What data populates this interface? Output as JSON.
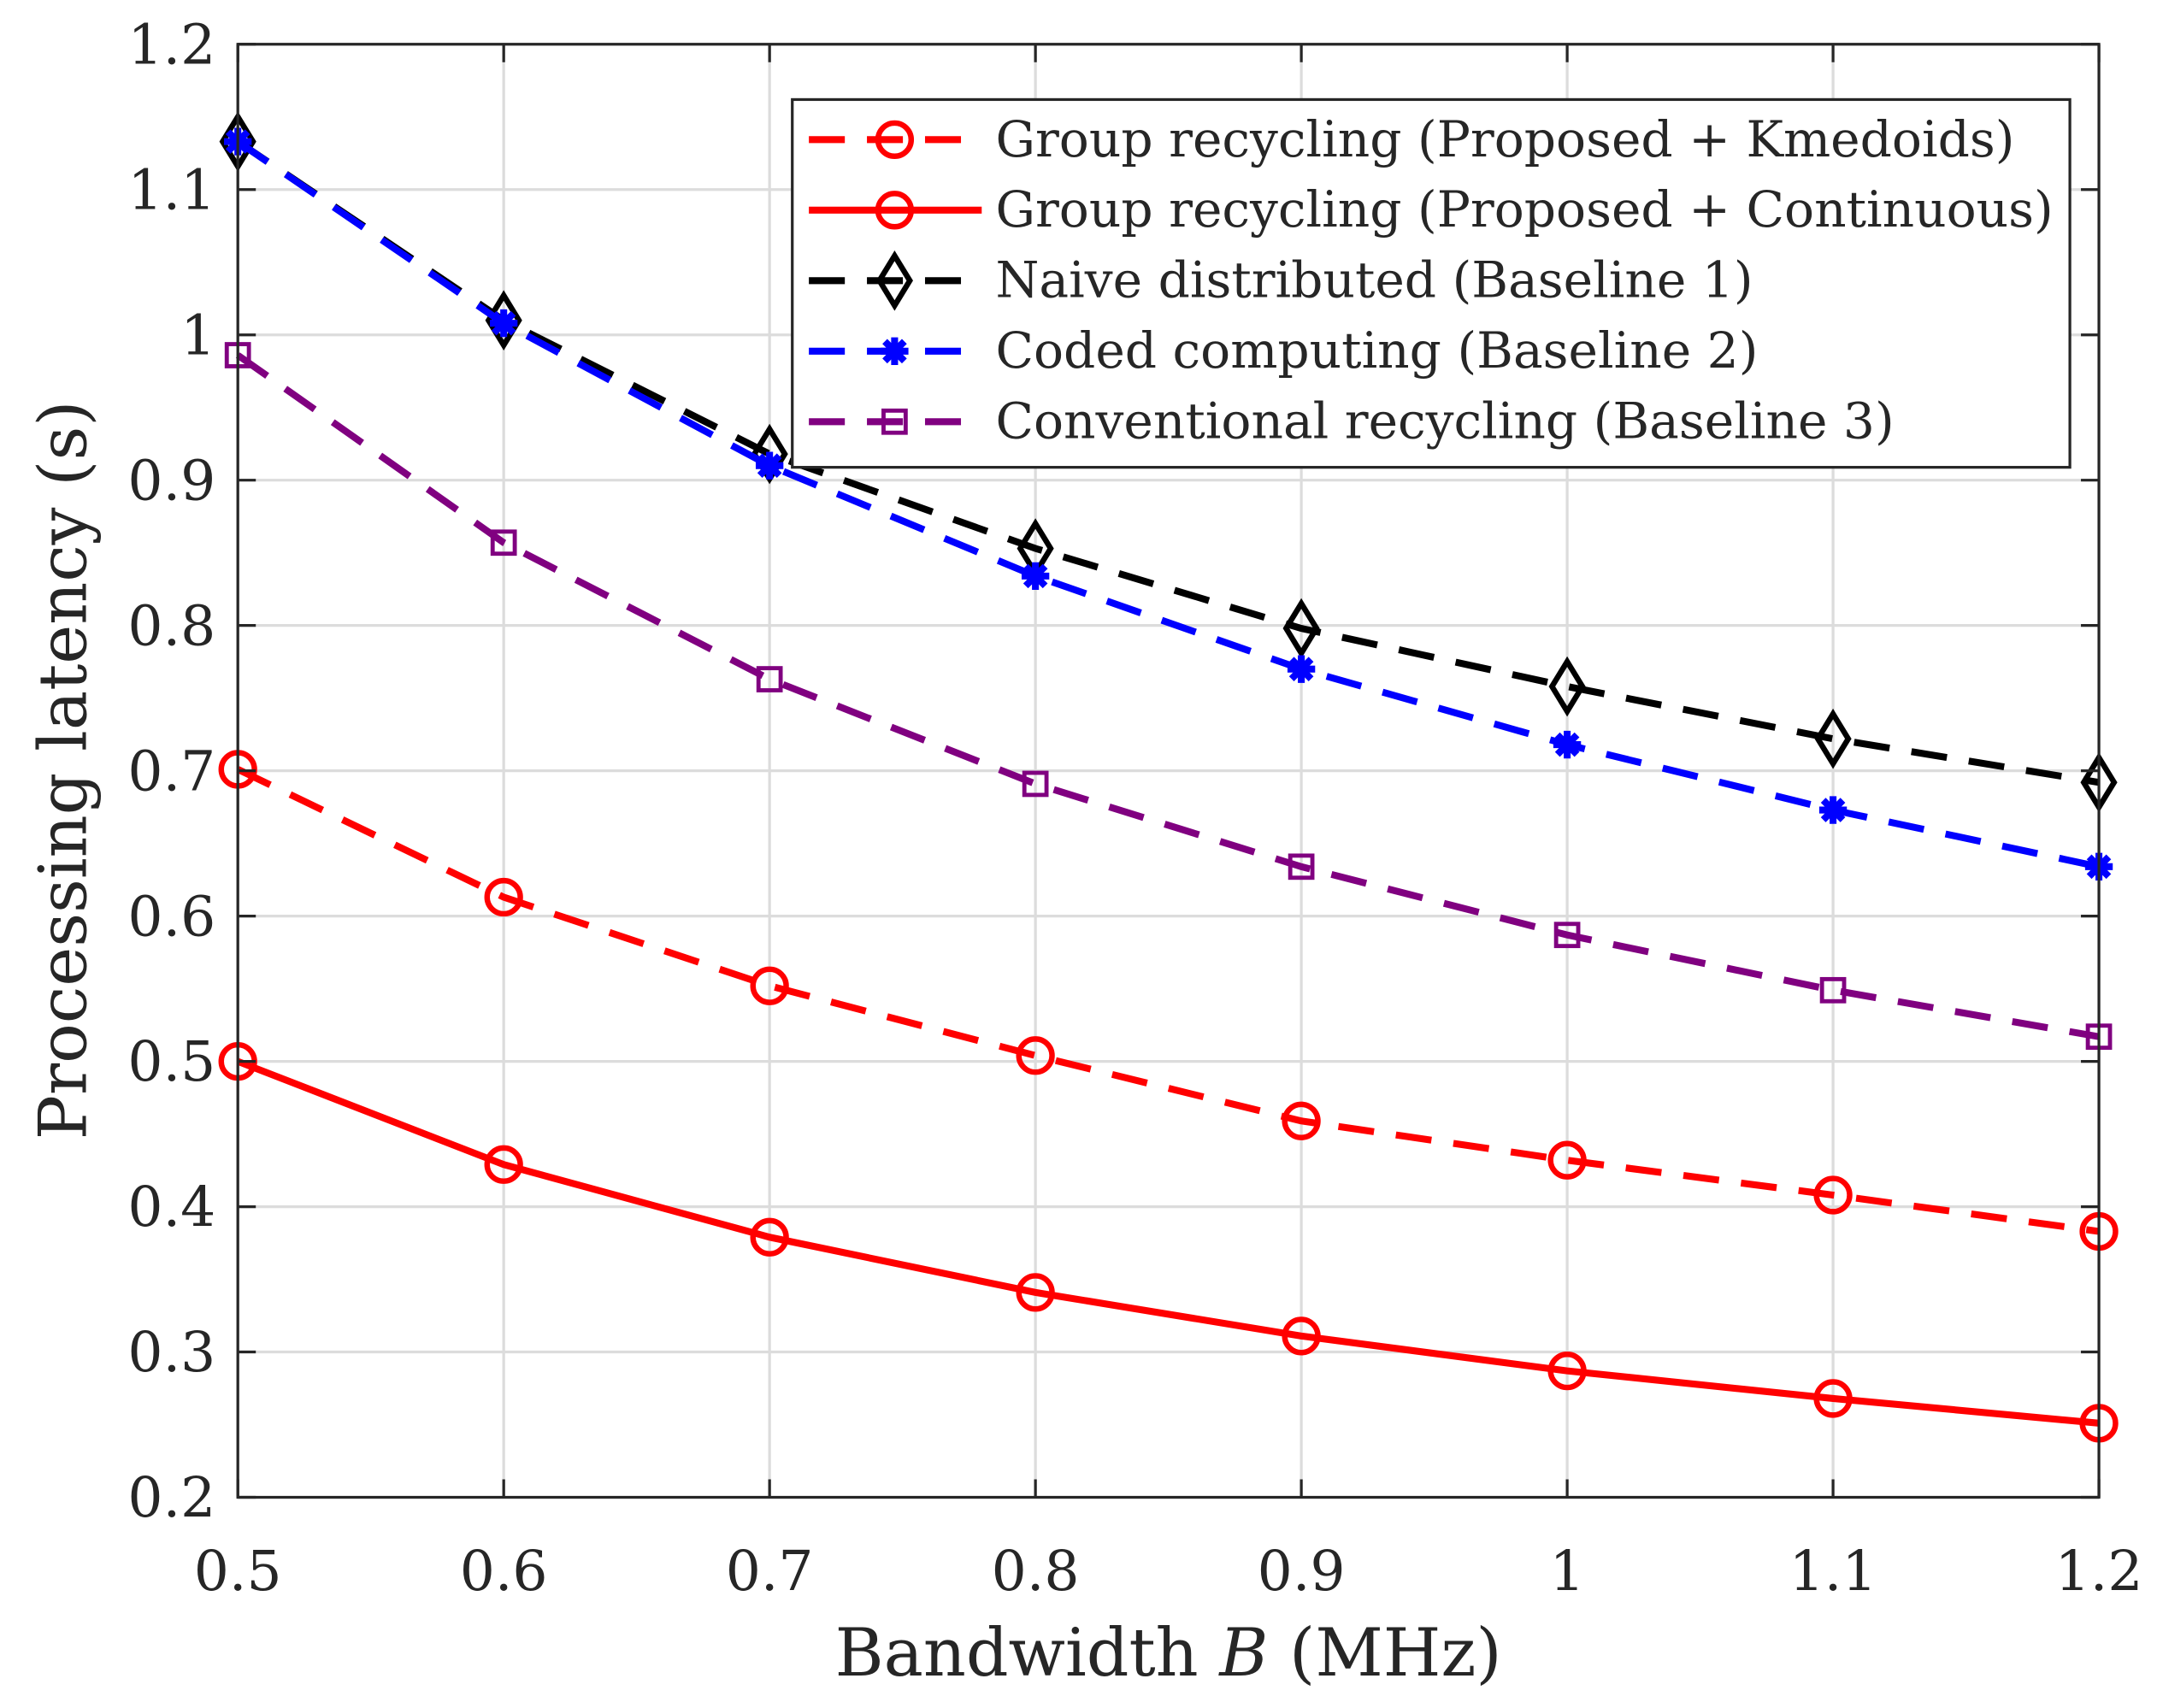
{
  "chart_data": {
    "type": "line",
    "title": "",
    "xlabel": "Bandwidth B (MHz)",
    "xlabel_parts": {
      "pre": "Bandwidth ",
      "italic": "B",
      "post": " (MHz)"
    },
    "ylabel": "Processing latency (s)",
    "xlim": [
      0.5,
      1.2
    ],
    "ylim": [
      0.2,
      1.2
    ],
    "xticks": [
      0.5,
      0.6,
      0.7,
      0.8,
      0.9,
      1.0,
      1.1,
      1.2
    ],
    "xtick_labels": [
      "0.5",
      "0.6",
      "0.7",
      "0.8",
      "0.9",
      "1",
      "1.1",
      "1.2"
    ],
    "yticks": [
      0.2,
      0.3,
      0.4,
      0.5,
      0.6,
      0.7,
      0.8,
      0.9,
      1.0,
      1.1,
      1.2
    ],
    "ytick_labels": [
      "0.2",
      "0.3",
      "0.4",
      "0.5",
      "0.6",
      "0.7",
      "0.8",
      "0.9",
      "1",
      "1.1",
      "1.2"
    ],
    "grid": true,
    "legend_position": "top-right",
    "x": [
      0.5,
      0.6,
      0.7,
      0.8,
      0.9,
      1.0,
      1.1,
      1.2
    ],
    "series": [
      {
        "name": "Group recycling (Proposed + Kmedoids)",
        "color": "#ff0000",
        "dash": "dashed",
        "marker": "circle",
        "values": [
          0.701,
          0.613,
          0.552,
          0.504,
          0.459,
          0.432,
          0.408,
          0.383
        ]
      },
      {
        "name": "Group recycling (Proposed + Continuous)",
        "color": "#ff0000",
        "dash": "solid",
        "marker": "circle",
        "values": [
          0.5,
          0.429,
          0.379,
          0.341,
          0.311,
          0.287,
          0.268,
          0.251
        ]
      },
      {
        "name": "Naive distributed (Baseline 1)",
        "color": "#000000",
        "dash": "dashed",
        "marker": "diamond",
        "values": [
          1.133,
          1.01,
          0.918,
          0.853,
          0.798,
          0.758,
          0.722,
          0.692
        ]
      },
      {
        "name": "Coded computing (Baseline 2)",
        "color": "#0000ff",
        "dash": "dashed",
        "marker": "asterisk",
        "values": [
          1.133,
          1.008,
          0.91,
          0.834,
          0.77,
          0.718,
          0.673,
          0.634
        ]
      },
      {
        "name": "Conventional recycling (Baseline 3)",
        "color": "#800080",
        "dash": "dashed",
        "marker": "square",
        "values": [
          0.986,
          0.857,
          0.763,
          0.691,
          0.634,
          0.587,
          0.549,
          0.517
        ]
      }
    ]
  }
}
